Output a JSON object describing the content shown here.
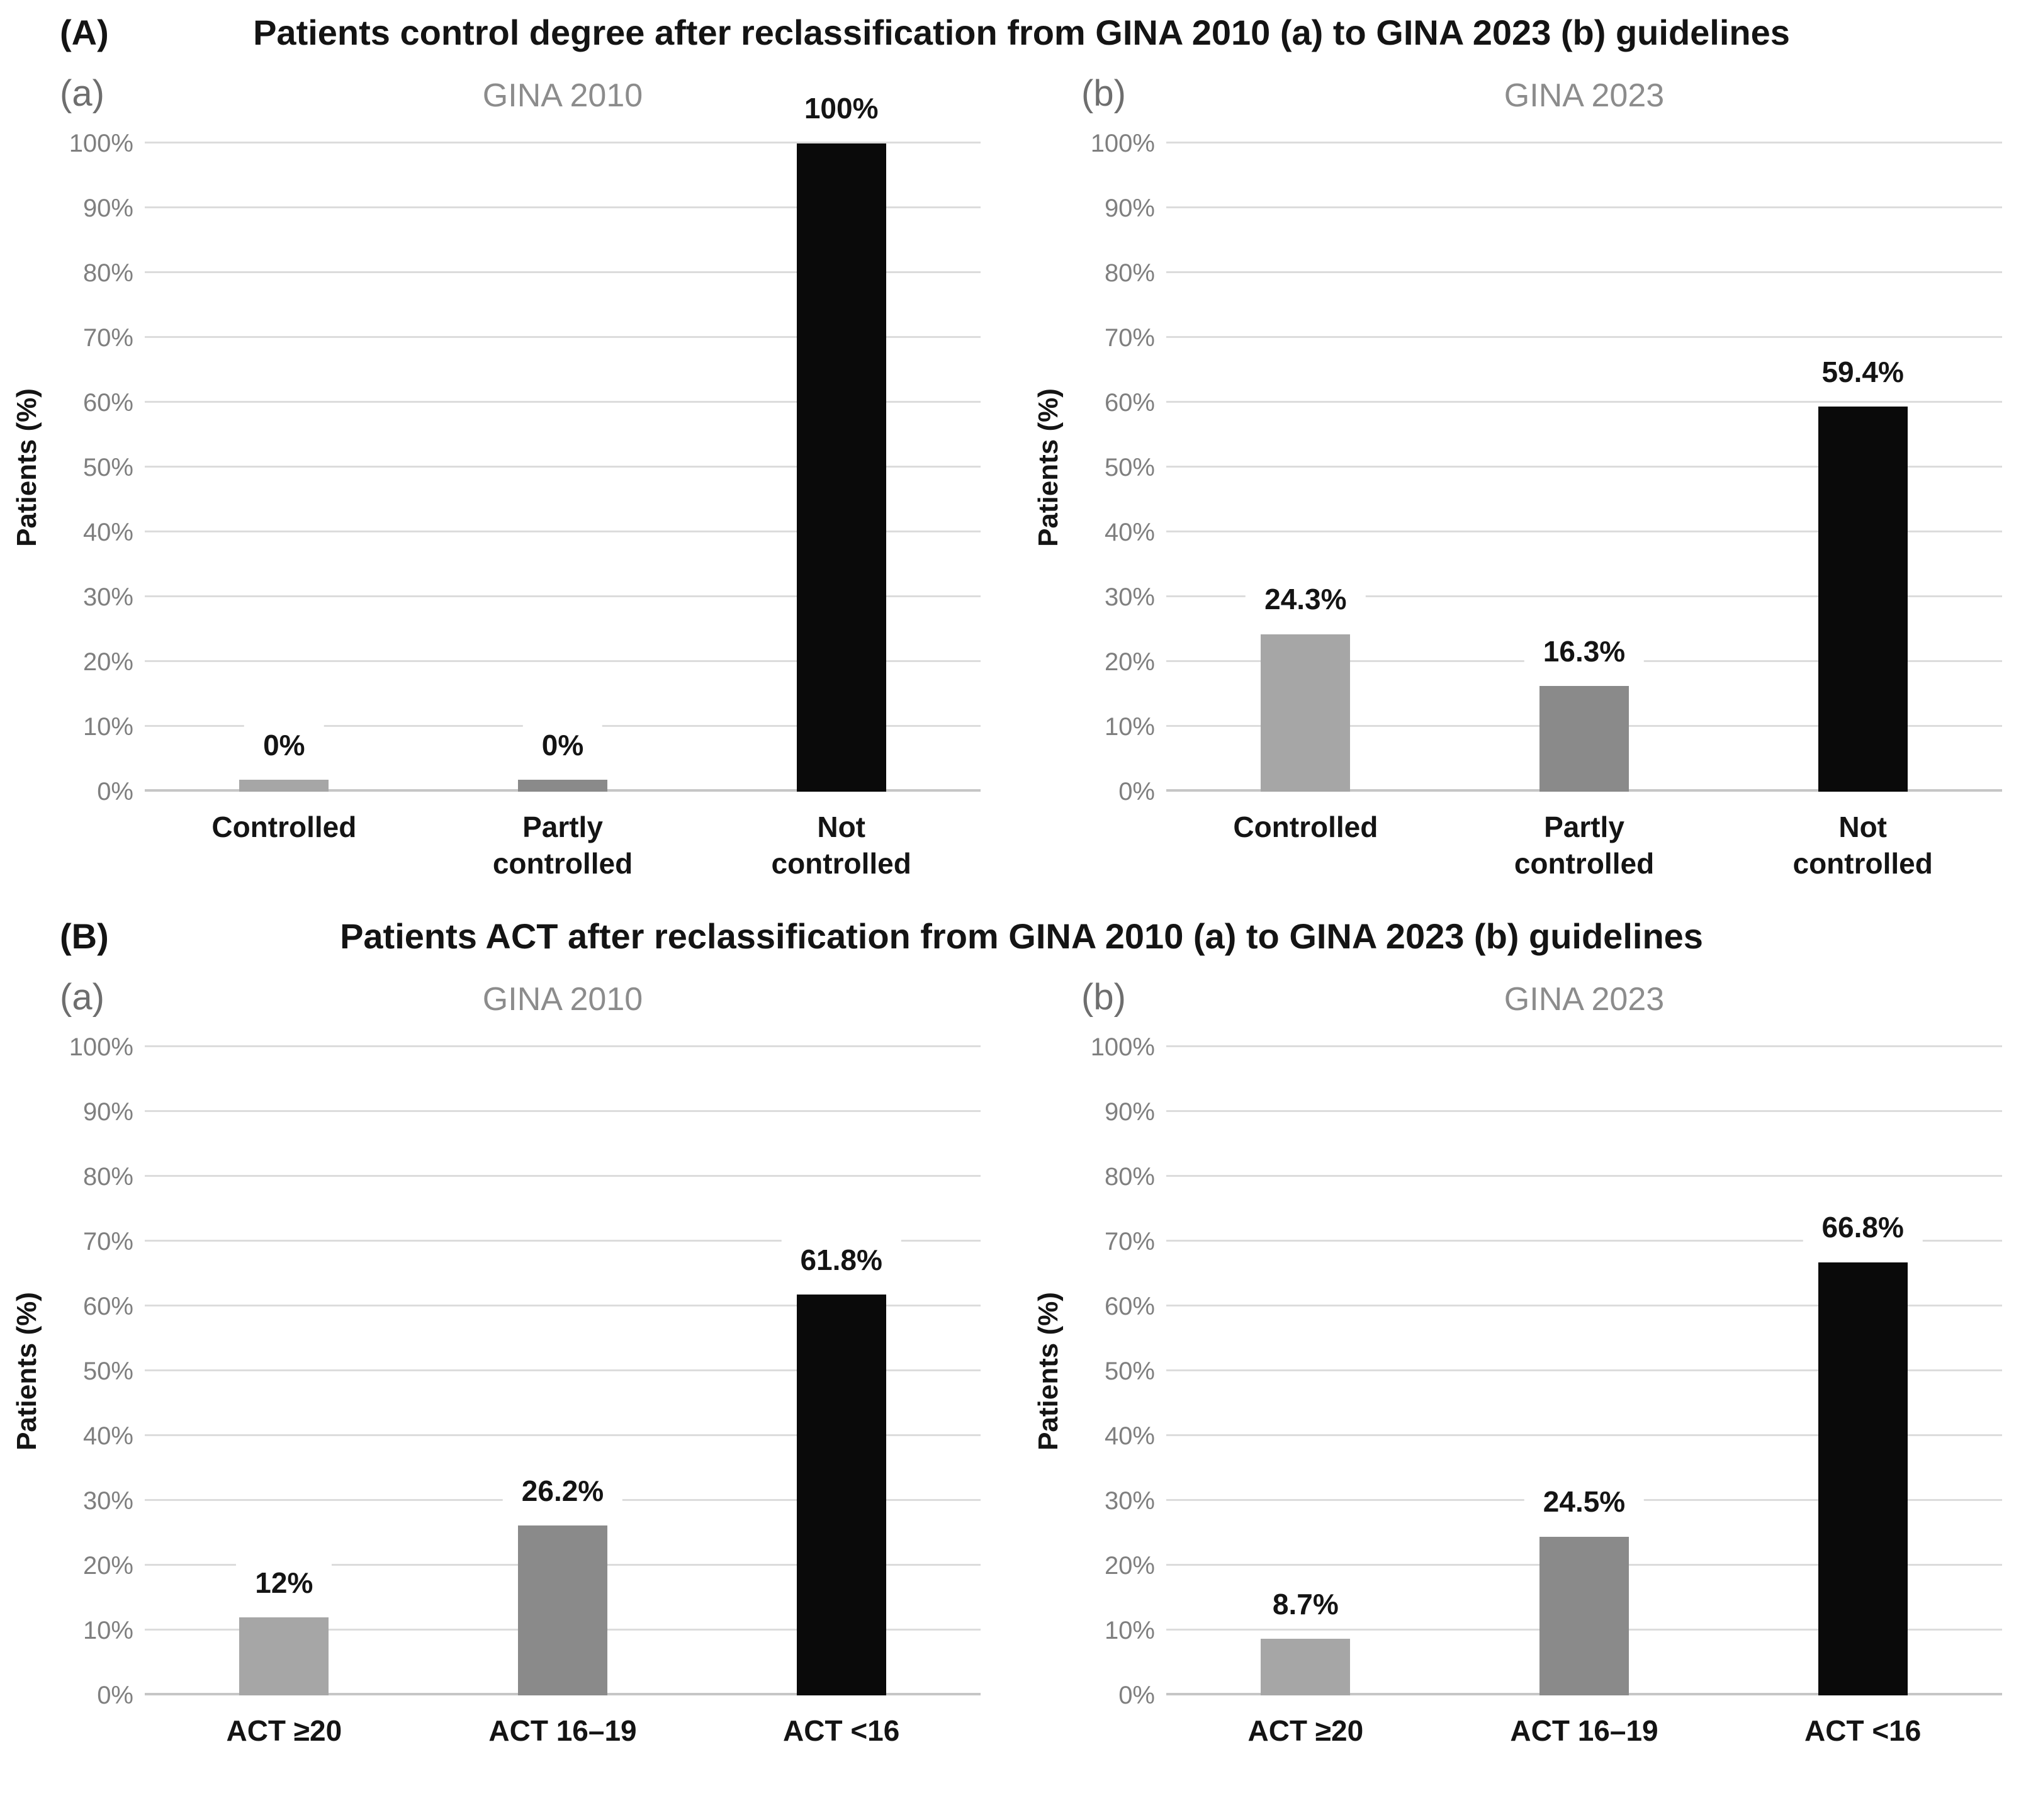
{
  "page": {
    "background": "#ffffff"
  },
  "panels": [
    {
      "letter": "(A)",
      "title": "Patients control degree after reclassification from GINA 2010 (a) to GINA 2023 (b) guidelines"
    },
    {
      "letter": "(B)",
      "title": "Patients ACT after reclassification from GINA 2010 (a) to GINA 2023 (b) guidelines"
    }
  ],
  "style": {
    "grid_color": "#dcdcdc",
    "baseline_color": "#c6c6c6",
    "tick_color": "#7f7f7f",
    "subtitle_color": "#8c8c8c",
    "subletter_color": "#6e6e6e",
    "text_color": "#141414",
    "label_box_color": "#ffffff"
  },
  "chart_data": [
    {
      "type": "bar",
      "panel": "A",
      "sub_label": "(a)",
      "title": "GINA 2010",
      "ylabel": "Patients (%)",
      "xlabel": "",
      "categories": [
        "Controlled",
        "Partly controlled",
        "Not controlled"
      ],
      "category_lines": [
        [
          "Controlled"
        ],
        [
          "Partly",
          "controlled"
        ],
        [
          "Not",
          "controlled"
        ]
      ],
      "values": [
        0,
        0,
        100
      ],
      "data_labels": [
        "0%",
        "0%",
        "100%"
      ],
      "ylim": [
        0,
        100
      ],
      "ytick_step": 10,
      "ytick_labels": [
        "0%",
        "10%",
        "20%",
        "30%",
        "40%",
        "50%",
        "60%",
        "70%",
        "80%",
        "90%",
        "100%"
      ],
      "grid": true,
      "legend": "none",
      "bar_colors": [
        "#a6a6a6",
        "#8a8a8a",
        "#0a0a0a"
      ],
      "min_visible_bar_pct": 1.8
    },
    {
      "type": "bar",
      "panel": "A",
      "sub_label": "(b)",
      "title": "GINA 2023",
      "ylabel": "Patients (%)",
      "xlabel": "",
      "categories": [
        "Controlled",
        "Partly controlled",
        "Not controlled"
      ],
      "category_lines": [
        [
          "Controlled"
        ],
        [
          "Partly",
          "controlled"
        ],
        [
          "Not",
          "controlled"
        ]
      ],
      "values": [
        24.3,
        16.3,
        59.4
      ],
      "data_labels": [
        "24.3%",
        "16.3%",
        "59.4%"
      ],
      "ylim": [
        0,
        100
      ],
      "ytick_step": 10,
      "ytick_labels": [
        "0%",
        "10%",
        "20%",
        "30%",
        "40%",
        "50%",
        "60%",
        "70%",
        "80%",
        "90%",
        "100%"
      ],
      "grid": true,
      "legend": "none",
      "bar_colors": [
        "#a6a6a6",
        "#8a8a8a",
        "#0a0a0a"
      ],
      "min_visible_bar_pct": 1.8
    },
    {
      "type": "bar",
      "panel": "B",
      "sub_label": "(a)",
      "title": "GINA 2010",
      "ylabel": "Patients (%)",
      "xlabel": "",
      "categories": [
        "ACT ≥20",
        "ACT 16–19",
        "ACT <16"
      ],
      "category_lines": [
        [
          "ACT ≥20"
        ],
        [
          "ACT 16–19"
        ],
        [
          "ACT <16"
        ]
      ],
      "values": [
        12,
        26.2,
        61.8
      ],
      "data_labels": [
        "12%",
        "26.2%",
        "61.8%"
      ],
      "ylim": [
        0,
        100
      ],
      "ytick_step": 10,
      "ytick_labels": [
        "0%",
        "10%",
        "20%",
        "30%",
        "40%",
        "50%",
        "60%",
        "70%",
        "80%",
        "90%",
        "100%"
      ],
      "grid": true,
      "legend": "none",
      "bar_colors": [
        "#a6a6a6",
        "#8a8a8a",
        "#0a0a0a"
      ],
      "min_visible_bar_pct": 1.8
    },
    {
      "type": "bar",
      "panel": "B",
      "sub_label": "(b)",
      "title": "GINA 2023",
      "ylabel": "Patients (%)",
      "xlabel": "",
      "categories": [
        "ACT ≥20",
        "ACT 16–19",
        "ACT <16"
      ],
      "category_lines": [
        [
          "ACT ≥20"
        ],
        [
          "ACT 16–19"
        ],
        [
          "ACT <16"
        ]
      ],
      "values": [
        8.7,
        24.5,
        66.8
      ],
      "data_labels": [
        "8.7%",
        "24.5%",
        "66.8%"
      ],
      "ylim": [
        0,
        100
      ],
      "ytick_step": 10,
      "ytick_labels": [
        "0%",
        "10%",
        "20%",
        "30%",
        "40%",
        "50%",
        "60%",
        "70%",
        "80%",
        "90%",
        "100%"
      ],
      "grid": true,
      "legend": "none",
      "bar_colors": [
        "#a6a6a6",
        "#8a8a8a",
        "#0a0a0a"
      ],
      "min_visible_bar_pct": 1.8
    }
  ]
}
